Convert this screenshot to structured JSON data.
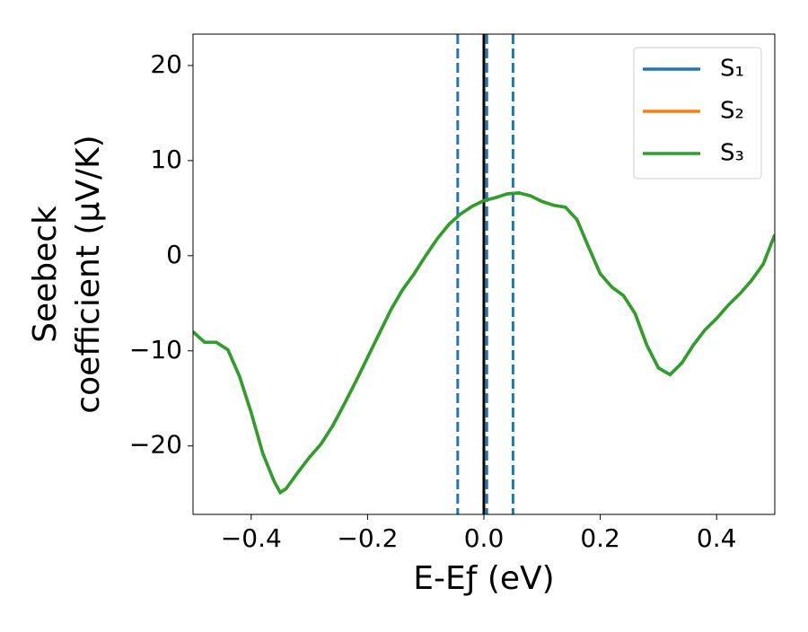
{
  "chart_data": {
    "type": "line",
    "xlabel": "E-Eƒ (eV)",
    "ylabel": [
      "Seebeck",
      "coefficient  (μV/K)"
    ],
    "x": [
      -0.5,
      -0.48,
      -0.46,
      -0.44,
      -0.42,
      -0.4,
      -0.38,
      -0.36,
      -0.35,
      -0.34,
      -0.32,
      -0.3,
      -0.28,
      -0.26,
      -0.24,
      -0.22,
      -0.2,
      -0.18,
      -0.16,
      -0.14,
      -0.12,
      -0.1,
      -0.08,
      -0.06,
      -0.04,
      -0.02,
      0,
      0.02,
      0.04,
      0.06,
      0.08,
      0.1,
      0.12,
      0.14,
      0.16,
      0.18,
      0.2,
      0.22,
      0.24,
      0.26,
      0.28,
      0.3,
      0.32,
      0.34,
      0.36,
      0.38,
      0.4,
      0.42,
      0.44,
      0.46,
      0.48,
      0.5
    ],
    "series": [
      {
        "name": "S₁",
        "color": "#1f77b4",
        "values": [
          -8.0,
          -9.1,
          -9.1,
          -9.9,
          -12.7,
          -16.5,
          -20.8,
          -23.8,
          -24.9,
          -24.5,
          -22.8,
          -21.2,
          -19.8,
          -17.9,
          -15.6,
          -13.2,
          -10.7,
          -8.2,
          -5.7,
          -3.6,
          -1.9,
          0,
          1.8,
          3.3,
          4.4,
          5.2,
          5.8,
          6.1,
          6.5,
          6.6,
          6.3,
          5.7,
          5.3,
          5.1,
          3.8,
          0.9,
          -1.9,
          -3.3,
          -4.2,
          -6.1,
          -9.4,
          -11.8,
          -12.5,
          -11.3,
          -9.4,
          -7.8,
          -6.6,
          -5.2,
          -4.0,
          -2.6,
          -0.9,
          2.2
        ]
      },
      {
        "name": "S₂",
        "color": "#ff7f0e",
        "values": [
          -8.0,
          -9.1,
          -9.1,
          -9.9,
          -12.7,
          -16.5,
          -20.8,
          -23.8,
          -24.9,
          -24.5,
          -22.8,
          -21.2,
          -19.8,
          -17.9,
          -15.6,
          -13.2,
          -10.7,
          -8.2,
          -5.7,
          -3.6,
          -1.9,
          0,
          1.8,
          3.3,
          4.4,
          5.2,
          5.8,
          6.1,
          6.5,
          6.6,
          6.3,
          5.7,
          5.3,
          5.1,
          3.8,
          0.9,
          -1.9,
          -3.3,
          -4.2,
          -6.1,
          -9.4,
          -11.8,
          -12.5,
          -11.3,
          -9.4,
          -7.8,
          -6.6,
          -5.2,
          -4.0,
          -2.6,
          -0.9,
          2.2
        ]
      },
      {
        "name": "S₃",
        "color": "#2ca02c",
        "values": [
          -8.0,
          -9.1,
          -9.1,
          -9.9,
          -12.7,
          -16.5,
          -20.8,
          -23.8,
          -24.9,
          -24.5,
          -22.8,
          -21.2,
          -19.8,
          -17.9,
          -15.6,
          -13.2,
          -10.7,
          -8.2,
          -5.7,
          -3.6,
          -1.9,
          0,
          1.8,
          3.3,
          4.4,
          5.2,
          5.8,
          6.1,
          6.5,
          6.6,
          6.3,
          5.7,
          5.3,
          5.1,
          3.8,
          0.9,
          -1.9,
          -3.3,
          -4.2,
          -6.1,
          -9.4,
          -11.8,
          -12.5,
          -11.3,
          -9.4,
          -7.8,
          -6.6,
          -5.2,
          -4.0,
          -2.6,
          -0.9,
          2.2
        ]
      }
    ],
    "vlines": [
      {
        "x": 0,
        "color": "#000000",
        "style": "solid"
      },
      {
        "x": -0.045,
        "color": "#1f77b4",
        "style": "dashed"
      },
      {
        "x": 0.005,
        "color": "#1f77b4",
        "style": "dashed"
      },
      {
        "x": 0.05,
        "color": "#1f77b4",
        "style": "dashed"
      }
    ],
    "xlim": [
      -0.5,
      0.5
    ],
    "xticks": [
      {
        "value": -0.4,
        "label": "−0.4"
      },
      {
        "value": -0.2,
        "label": "−0.2"
      },
      {
        "value": 0,
        "label": "0.0"
      },
      0.2,
      0.4
    ],
    "ylim": [
      -27.2,
      23.3
    ],
    "yticks": [
      {
        "value": -20,
        "label": "−20"
      },
      {
        "value": -10,
        "label": "−10"
      },
      0,
      10,
      20
    ],
    "legend": "upper right",
    "grid": false
  }
}
